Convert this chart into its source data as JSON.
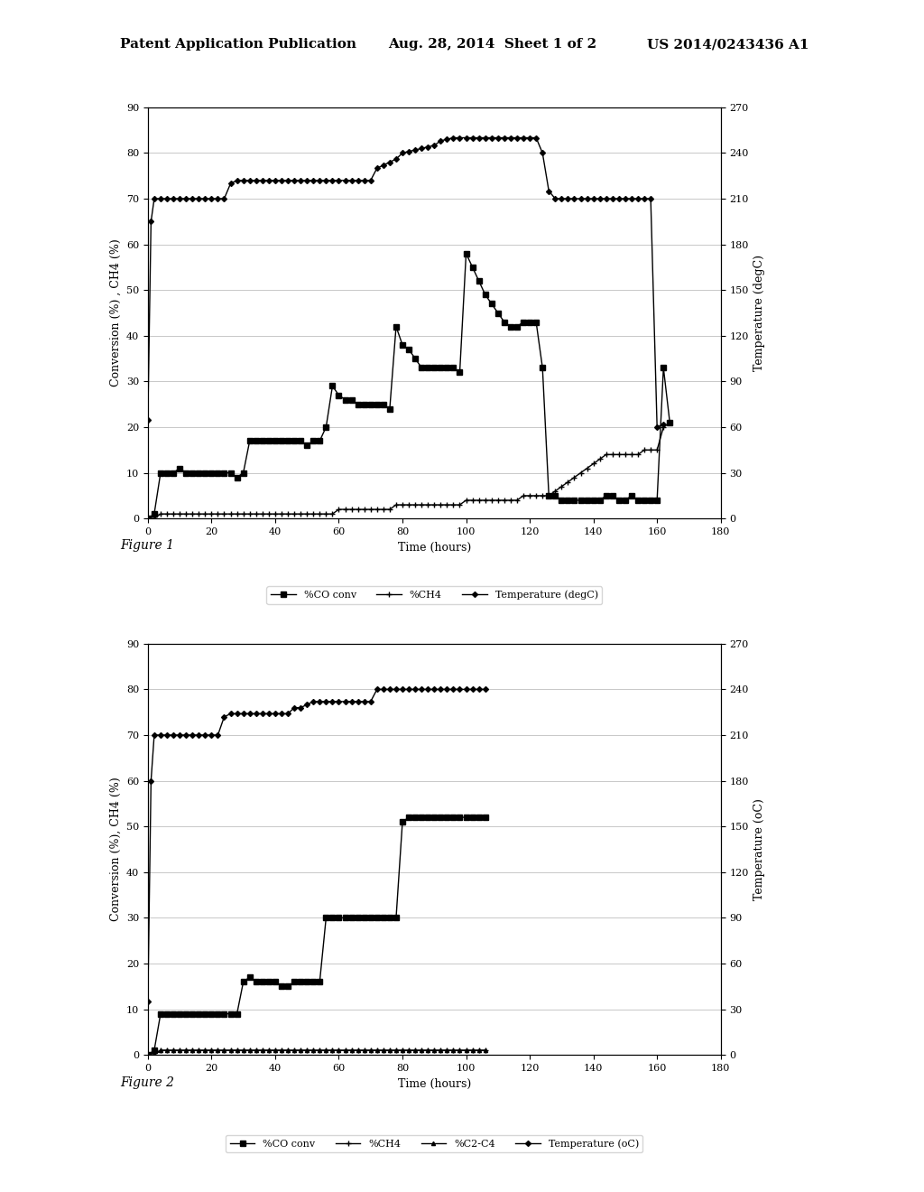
{
  "fig1": {
    "xlabel": "Time (hours)",
    "ylabel_left": "Conversion (%) , CH4 (%)",
    "ylabel_right": "Temperature (degC)",
    "xlim": [
      0,
      180
    ],
    "ylim_left": [
      0,
      90
    ],
    "ylim_right": [
      0,
      270
    ],
    "xticks": [
      0,
      20,
      40,
      60,
      80,
      100,
      120,
      140,
      160,
      180
    ],
    "yticks_left": [
      0,
      10,
      20,
      30,
      40,
      50,
      60,
      70,
      80,
      90
    ],
    "yticks_right": [
      0,
      30,
      60,
      90,
      120,
      150,
      180,
      210,
      240,
      270
    ],
    "co_conv_x": [
      0,
      2,
      4,
      6,
      8,
      10,
      12,
      14,
      16,
      18,
      20,
      22,
      24,
      26,
      28,
      30,
      32,
      34,
      36,
      38,
      40,
      42,
      44,
      46,
      48,
      50,
      52,
      54,
      56,
      58,
      60,
      62,
      64,
      66,
      68,
      70,
      72,
      74,
      76,
      78,
      80,
      82,
      84,
      86,
      88,
      90,
      92,
      94,
      96,
      98,
      100,
      102,
      104,
      106,
      108,
      110,
      112,
      114,
      116,
      118,
      120,
      122,
      124,
      126,
      128,
      130,
      132,
      134,
      136,
      138,
      140,
      142,
      144,
      146,
      148,
      150,
      152,
      154,
      156,
      158,
      160,
      162,
      164
    ],
    "co_conv_y": [
      0,
      1,
      10,
      10,
      10,
      11,
      10,
      10,
      10,
      10,
      10,
      10,
      10,
      10,
      9,
      10,
      17,
      17,
      17,
      17,
      17,
      17,
      17,
      17,
      17,
      16,
      17,
      17,
      20,
      29,
      27,
      26,
      26,
      25,
      25,
      25,
      25,
      25,
      24,
      42,
      38,
      37,
      35,
      33,
      33,
      33,
      33,
      33,
      33,
      32,
      58,
      55,
      52,
      49,
      47,
      45,
      43,
      42,
      42,
      43,
      43,
      43,
      33,
      5,
      5,
      4,
      4,
      4,
      4,
      4,
      4,
      4,
      5,
      5,
      4,
      4,
      5,
      4,
      4,
      4,
      4,
      33,
      21
    ],
    "ch4_x": [
      0,
      2,
      4,
      6,
      8,
      10,
      12,
      14,
      16,
      18,
      20,
      22,
      24,
      26,
      28,
      30,
      32,
      34,
      36,
      38,
      40,
      42,
      44,
      46,
      48,
      50,
      52,
      54,
      56,
      58,
      60,
      62,
      64,
      66,
      68,
      70,
      72,
      74,
      76,
      78,
      80,
      82,
      84,
      86,
      88,
      90,
      92,
      94,
      96,
      98,
      100,
      102,
      104,
      106,
      108,
      110,
      112,
      114,
      116,
      118,
      120,
      122,
      124,
      126,
      128,
      130,
      132,
      134,
      136,
      138,
      140,
      142,
      144,
      146,
      148,
      150,
      152,
      154,
      156,
      158,
      160,
      162,
      164
    ],
    "ch4_y": [
      0,
      0,
      1,
      1,
      1,
      1,
      1,
      1,
      1,
      1,
      1,
      1,
      1,
      1,
      1,
      1,
      1,
      1,
      1,
      1,
      1,
      1,
      1,
      1,
      1,
      1,
      1,
      1,
      1,
      1,
      2,
      2,
      2,
      2,
      2,
      2,
      2,
      2,
      2,
      3,
      3,
      3,
      3,
      3,
      3,
      3,
      3,
      3,
      3,
      3,
      4,
      4,
      4,
      4,
      4,
      4,
      4,
      4,
      4,
      5,
      5,
      5,
      5,
      5,
      6,
      7,
      8,
      9,
      10,
      11,
      12,
      13,
      14,
      14,
      14,
      14,
      14,
      14,
      15,
      15,
      15,
      20,
      21
    ],
    "temp_x": [
      0,
      1,
      2,
      4,
      6,
      8,
      10,
      12,
      14,
      16,
      18,
      20,
      22,
      24,
      26,
      28,
      30,
      32,
      34,
      36,
      38,
      40,
      42,
      44,
      46,
      48,
      50,
      52,
      54,
      56,
      58,
      60,
      62,
      64,
      66,
      68,
      70,
      72,
      74,
      76,
      78,
      80,
      82,
      84,
      86,
      88,
      90,
      92,
      94,
      96,
      98,
      100,
      102,
      104,
      106,
      108,
      110,
      112,
      114,
      116,
      118,
      120,
      122,
      124,
      126,
      128,
      130,
      132,
      134,
      136,
      138,
      140,
      142,
      144,
      146,
      148,
      150,
      152,
      154,
      156,
      158,
      160,
      162
    ],
    "temp_y": [
      65,
      195,
      210,
      210,
      210,
      210,
      210,
      210,
      210,
      210,
      210,
      210,
      210,
      210,
      220,
      222,
      222,
      222,
      222,
      222,
      222,
      222,
      222,
      222,
      222,
      222,
      222,
      222,
      222,
      222,
      222,
      222,
      222,
      222,
      222,
      222,
      222,
      230,
      232,
      234,
      236,
      240,
      241,
      242,
      243,
      244,
      245,
      248,
      249,
      250,
      250,
      250,
      250,
      250,
      250,
      250,
      250,
      250,
      250,
      250,
      250,
      250,
      250,
      240,
      215,
      210,
      210,
      210,
      210,
      210,
      210,
      210,
      210,
      210,
      210,
      210,
      210,
      210,
      210,
      210,
      210,
      60,
      62
    ],
    "legend": [
      "%CO conv",
      "%CH4",
      "Temperature (degC)"
    ]
  },
  "fig2": {
    "xlabel": "Time (hours)",
    "ylabel_left": "Conversion (%), CH4 (%)",
    "ylabel_right": "Temperature (oC)",
    "xlim": [
      0,
      180
    ],
    "ylim_left": [
      0,
      90
    ],
    "ylim_right": [
      0,
      270
    ],
    "xticks": [
      0,
      20,
      40,
      60,
      80,
      100,
      120,
      140,
      160,
      180
    ],
    "yticks_left": [
      0,
      10,
      20,
      30,
      40,
      50,
      60,
      70,
      80,
      90
    ],
    "yticks_right": [
      0,
      30,
      60,
      90,
      120,
      150,
      180,
      210,
      240,
      270
    ],
    "co_conv_x": [
      0,
      2,
      4,
      6,
      8,
      10,
      12,
      14,
      16,
      18,
      20,
      22,
      24,
      26,
      28,
      30,
      32,
      34,
      36,
      38,
      40,
      42,
      44,
      46,
      48,
      50,
      52,
      54,
      56,
      58,
      60,
      62,
      64,
      66,
      68,
      70,
      72,
      74,
      76,
      78,
      80,
      82,
      84,
      86,
      88,
      90,
      92,
      94,
      96,
      98,
      100,
      102,
      104,
      106
    ],
    "co_conv_y": [
      0,
      1,
      9,
      9,
      9,
      9,
      9,
      9,
      9,
      9,
      9,
      9,
      9,
      9,
      9,
      16,
      17,
      16,
      16,
      16,
      16,
      15,
      15,
      16,
      16,
      16,
      16,
      16,
      30,
      30,
      30,
      30,
      30,
      30,
      30,
      30,
      30,
      30,
      30,
      30,
      51,
      52,
      52,
      52,
      52,
      52,
      52,
      52,
      52,
      52,
      52,
      52,
      52,
      52
    ],
    "ch4_x": [
      0,
      2,
      4,
      6,
      8,
      10,
      12,
      14,
      16,
      18,
      20,
      22,
      24,
      26,
      28,
      30,
      32,
      34,
      36,
      38,
      40,
      42,
      44,
      46,
      48,
      50,
      52,
      54,
      56,
      58,
      60,
      62,
      64,
      66,
      68,
      70,
      72,
      74,
      76,
      78,
      80,
      82,
      84,
      86,
      88,
      90,
      92,
      94,
      96,
      98,
      100,
      102,
      104,
      106
    ],
    "ch4_y": [
      0,
      0,
      1,
      1,
      1,
      1,
      1,
      1,
      1,
      1,
      1,
      1,
      1,
      1,
      1,
      1,
      1,
      1,
      1,
      1,
      1,
      1,
      1,
      1,
      1,
      1,
      1,
      1,
      1,
      1,
      1,
      1,
      1,
      1,
      1,
      1,
      1,
      1,
      1,
      1,
      1,
      1,
      1,
      1,
      1,
      1,
      1,
      1,
      1,
      1,
      1,
      1,
      1,
      1
    ],
    "c2c4_x": [
      0,
      2,
      4,
      6,
      8,
      10,
      12,
      14,
      16,
      18,
      20,
      22,
      24,
      26,
      28,
      30,
      32,
      34,
      36,
      38,
      40,
      42,
      44,
      46,
      48,
      50,
      52,
      54,
      56,
      58,
      60,
      62,
      64,
      66,
      68,
      70,
      72,
      74,
      76,
      78,
      80,
      82,
      84,
      86,
      88,
      90,
      92,
      94,
      96,
      98,
      100,
      102,
      104,
      106
    ],
    "c2c4_y": [
      0,
      0,
      1,
      1,
      1,
      1,
      1,
      1,
      1,
      1,
      1,
      1,
      1,
      1,
      1,
      1,
      1,
      1,
      1,
      1,
      1,
      1,
      1,
      1,
      1,
      1,
      1,
      1,
      1,
      1,
      1,
      1,
      1,
      1,
      1,
      1,
      1,
      1,
      1,
      1,
      1,
      1,
      1,
      1,
      1,
      1,
      1,
      1,
      1,
      1,
      1,
      1,
      1,
      1
    ],
    "temp_x": [
      0,
      1,
      2,
      4,
      6,
      8,
      10,
      12,
      14,
      16,
      18,
      20,
      22,
      24,
      26,
      28,
      30,
      32,
      34,
      36,
      38,
      40,
      42,
      44,
      46,
      48,
      50,
      52,
      54,
      56,
      58,
      60,
      62,
      64,
      66,
      68,
      70,
      72,
      74,
      76,
      78,
      80,
      82,
      84,
      86,
      88,
      90,
      92,
      94,
      96,
      98,
      100,
      102,
      104,
      106
    ],
    "temp_y": [
      35,
      180,
      210,
      210,
      210,
      210,
      210,
      210,
      210,
      210,
      210,
      210,
      210,
      222,
      224,
      224,
      224,
      224,
      224,
      224,
      224,
      224,
      224,
      224,
      228,
      228,
      230,
      232,
      232,
      232,
      232,
      232,
      232,
      232,
      232,
      232,
      232,
      240,
      240,
      240,
      240,
      240,
      240,
      240,
      240,
      240,
      240,
      240,
      240,
      240,
      240,
      240,
      240,
      240,
      240
    ],
    "legend": [
      "%CO conv",
      "%CH4",
      "%C2-C4",
      "Temperature (oC)"
    ]
  },
  "header_left": "Patent Application Publication",
  "header_center": "Aug. 28, 2014  Sheet 1 of 2",
  "header_right": "US 2014/0243436 A1",
  "fig1_label": "Figure 1",
  "fig2_label": "Figure 2",
  "bg_color": "#ffffff",
  "fontsize_header": 11,
  "fontsize_axis": 9,
  "fontsize_tick": 8,
  "fontsize_legend": 8,
  "fontsize_label": 10
}
